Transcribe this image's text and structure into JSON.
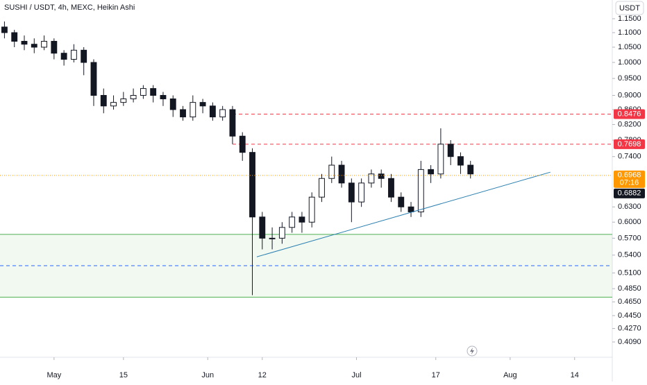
{
  "chart_data": {
    "type": "candlestick",
    "title": "SUSHI / USDT, 4h, MEXC, Heikin Ashi",
    "currency_button": "USDT",
    "x": [
      -10,
      -8,
      -6,
      -4,
      -2,
      0,
      2,
      4,
      6,
      8,
      10,
      12,
      14,
      16,
      18,
      20,
      22,
      24,
      26,
      28,
      30,
      32,
      34,
      36,
      38,
      40,
      42,
      44,
      46,
      48,
      50,
      52,
      54,
      56,
      58,
      60,
      62,
      64,
      66,
      68,
      70,
      72,
      74,
      76,
      78,
      80,
      82,
      84
    ],
    "open": [
      1.12,
      1.1,
      1.07,
      1.06,
      1.05,
      1.07,
      1.03,
      1.01,
      1.04,
      1.0,
      0.9,
      0.87,
      0.88,
      0.89,
      0.9,
      0.92,
      0.9,
      0.89,
      0.86,
      0.84,
      0.88,
      0.87,
      0.84,
      0.86,
      0.79,
      0.75,
      0.61,
      0.57,
      0.57,
      0.59,
      0.61,
      0.6,
      0.65,
      0.69,
      0.72,
      0.68,
      0.64,
      0.68,
      0.7,
      0.69,
      0.65,
      0.63,
      0.62,
      0.71,
      0.7,
      0.77,
      0.74,
      0.72
    ],
    "high": [
      1.14,
      1.11,
      1.09,
      1.08,
      1.09,
      1.08,
      1.04,
      1.06,
      1.05,
      1.01,
      0.92,
      0.9,
      0.91,
      0.92,
      0.93,
      0.93,
      0.91,
      0.9,
      0.87,
      0.9,
      0.89,
      0.88,
      0.87,
      0.87,
      0.8,
      0.76,
      0.62,
      0.59,
      0.6,
      0.62,
      0.62,
      0.66,
      0.7,
      0.74,
      0.73,
      0.69,
      0.69,
      0.71,
      0.71,
      0.7,
      0.66,
      0.64,
      0.73,
      0.72,
      0.81,
      0.78,
      0.75,
      0.73
    ],
    "low": [
      1.08,
      1.05,
      1.04,
      1.03,
      1.04,
      1.01,
      0.99,
      1.0,
      0.96,
      0.87,
      0.85,
      0.86,
      0.87,
      0.88,
      0.89,
      0.88,
      0.87,
      0.84,
      0.83,
      0.83,
      0.85,
      0.83,
      0.83,
      0.77,
      0.73,
      0.475,
      0.55,
      0.55,
      0.56,
      0.58,
      0.58,
      0.59,
      0.64,
      0.68,
      0.67,
      0.6,
      0.63,
      0.67,
      0.67,
      0.64,
      0.62,
      0.61,
      0.61,
      0.68,
      0.69,
      0.72,
      0.7,
      0.69
    ],
    "close": [
      1.1,
      1.07,
      1.06,
      1.05,
      1.07,
      1.03,
      1.01,
      1.04,
      1.0,
      0.9,
      0.87,
      0.88,
      0.89,
      0.9,
      0.92,
      0.9,
      0.89,
      0.86,
      0.84,
      0.88,
      0.87,
      0.84,
      0.86,
      0.79,
      0.75,
      0.61,
      0.57,
      0.57,
      0.59,
      0.61,
      0.6,
      0.65,
      0.69,
      0.72,
      0.68,
      0.64,
      0.68,
      0.7,
      0.69,
      0.65,
      0.63,
      0.62,
      0.71,
      0.7,
      0.77,
      0.74,
      0.72,
      0.7
    ],
    "candle_color": "#131722",
    "xlim": [
      -10.9,
      112.6
    ],
    "xticks": [
      {
        "value": 0,
        "label": "May"
      },
      {
        "value": 14,
        "label": "15"
      },
      {
        "value": 31,
        "label": "Jun"
      },
      {
        "value": 42,
        "label": "12"
      },
      {
        "value": 61,
        "label": "Jul"
      },
      {
        "value": 77,
        "label": "17"
      },
      {
        "value": 92,
        "label": "Aug"
      },
      {
        "value": 105,
        "label": "14"
      }
    ],
    "ylim": [
      0.3895,
      1.221
    ],
    "log_y": true,
    "yticks": [
      {
        "value": 1.15,
        "label": "1.1500"
      },
      {
        "value": 1.1,
        "label": "1.1000"
      },
      {
        "value": 1.05,
        "label": "1.0500"
      },
      {
        "value": 1,
        "label": "1.0000"
      },
      {
        "value": 0.95,
        "label": "0.9500"
      },
      {
        "value": 0.9,
        "label": "0.9000"
      },
      {
        "value": 0.86,
        "label": "0.8600"
      },
      {
        "value": 0.82,
        "label": "0.8200"
      },
      {
        "value": 0.78,
        "label": "0.7800"
      },
      {
        "value": 0.74,
        "label": "0.7400"
      },
      {
        "value": 0.63,
        "label": "0.6300"
      },
      {
        "value": 0.6,
        "label": "0.6000"
      },
      {
        "value": 0.57,
        "label": "0.5700"
      },
      {
        "value": 0.54,
        "label": "0.5400"
      },
      {
        "value": 0.51,
        "label": "0.5100"
      },
      {
        "value": 0.485,
        "label": "0.4850"
      },
      {
        "value": 0.465,
        "label": "0.4650"
      },
      {
        "value": 0.445,
        "label": "0.4450"
      },
      {
        "value": 0.427,
        "label": "0.4270"
      },
      {
        "value": 0.409,
        "label": "0.4090"
      }
    ],
    "levels": [
      {
        "value": 0.8476,
        "color": "#f23645"
      },
      {
        "value": 0.7698,
        "color": "#f23645"
      }
    ],
    "zone": {
      "top": 0.577,
      "bottom": 0.472,
      "mid": 0.522,
      "color": "#4caf50",
      "mid_color": "#2962ff"
    },
    "trendline": {
      "x": [
        40.9,
        100.1
      ],
      "y": [
        0.537,
        0.704
      ],
      "color": "#2a7fb0"
    },
    "last_price": {
      "value": 0.6968,
      "countdown": "07:16",
      "color": "#ff9800"
    },
    "prev_close": 0.6882
  }
}
